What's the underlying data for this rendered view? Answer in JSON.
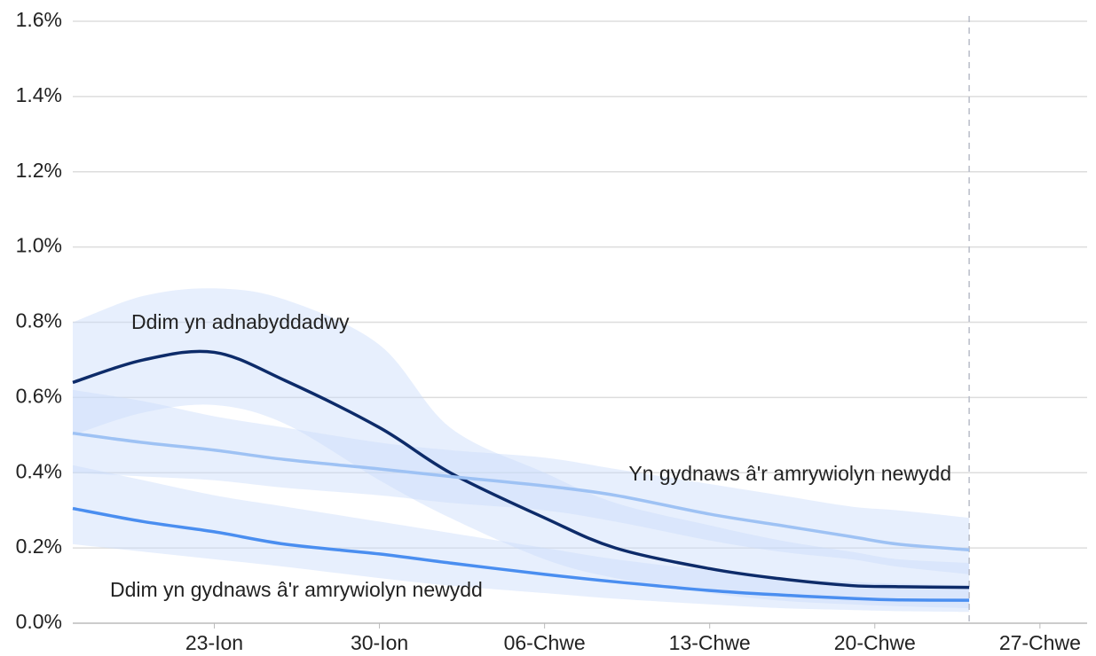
{
  "chart_data": {
    "type": "line",
    "x": [
      17,
      20,
      23,
      26,
      30,
      33,
      37,
      40,
      44,
      47,
      50,
      52,
      55
    ],
    "xlim": [
      17,
      60
    ],
    "xticks": [
      {
        "value": 23,
        "label": "23-Ion"
      },
      {
        "value": 30,
        "label": "30-Ion"
      },
      {
        "value": 37,
        "label": "06-Chwe"
      },
      {
        "value": 44,
        "label": "13-Chwe"
      },
      {
        "value": 51,
        "label": "20-Chwe"
      },
      {
        "value": 58,
        "label": "27-Chwe"
      }
    ],
    "ylim": [
      0,
      1.6
    ],
    "yticks": [
      {
        "value": 0,
        "label": "0.0%"
      },
      {
        "value": 0.2,
        "label": "0.2%"
      },
      {
        "value": 0.4,
        "label": "0.4%"
      },
      {
        "value": 0.6,
        "label": "0.6%"
      },
      {
        "value": 0.8,
        "label": "0.8%"
      },
      {
        "value": 1.0,
        "label": "1.0%"
      },
      {
        "value": 1.2,
        "label": "1.2%"
      },
      {
        "value": 1.4,
        "label": "1.4%"
      },
      {
        "value": 1.6,
        "label": "1.6%"
      }
    ],
    "grid": true,
    "vline": 55,
    "series": [
      {
        "name": "Ddim yn adnabyddadwy",
        "color": "#0d2b69",
        "values": [
          0.64,
          0.7,
          0.72,
          0.645,
          0.52,
          0.4,
          0.28,
          0.2,
          0.145,
          0.118,
          0.1,
          0.097,
          0.095
        ],
        "upper": [
          0.8,
          0.87,
          0.89,
          0.86,
          0.74,
          0.52,
          0.4,
          0.32,
          0.26,
          0.22,
          0.19,
          0.17,
          0.16
        ],
        "lower": [
          0.5,
          0.56,
          0.58,
          0.53,
          0.38,
          0.28,
          0.17,
          0.12,
          0.08,
          0.06,
          0.05,
          0.045,
          0.04
        ]
      },
      {
        "name": "Yn gydnaws â'r amrywiolyn newydd",
        "color": "#9ec2f4",
        "values": [
          0.505,
          0.48,
          0.46,
          0.435,
          0.41,
          0.39,
          0.365,
          0.34,
          0.29,
          0.26,
          0.23,
          0.21,
          0.195
        ],
        "upper": [
          0.62,
          0.59,
          0.55,
          0.52,
          0.48,
          0.46,
          0.44,
          0.41,
          0.37,
          0.34,
          0.31,
          0.3,
          0.28
        ],
        "lower": [
          0.4,
          0.39,
          0.38,
          0.36,
          0.34,
          0.32,
          0.3,
          0.27,
          0.22,
          0.19,
          0.17,
          0.15,
          0.13
        ]
      },
      {
        "name": "Ddim yn gydnaws â'r amrywiolyn newydd",
        "color": "#4a8ef0",
        "values": [
          0.305,
          0.27,
          0.243,
          0.21,
          0.184,
          0.16,
          0.13,
          0.11,
          0.087,
          0.075,
          0.066,
          0.062,
          0.061
        ],
        "upper": [
          0.42,
          0.38,
          0.34,
          0.31,
          0.27,
          0.24,
          0.2,
          0.17,
          0.14,
          0.12,
          0.11,
          0.105,
          0.1
        ],
        "lower": [
          0.21,
          0.19,
          0.17,
          0.15,
          0.12,
          0.1,
          0.08,
          0.065,
          0.05,
          0.04,
          0.035,
          0.032,
          0.03
        ]
      }
    ]
  }
}
